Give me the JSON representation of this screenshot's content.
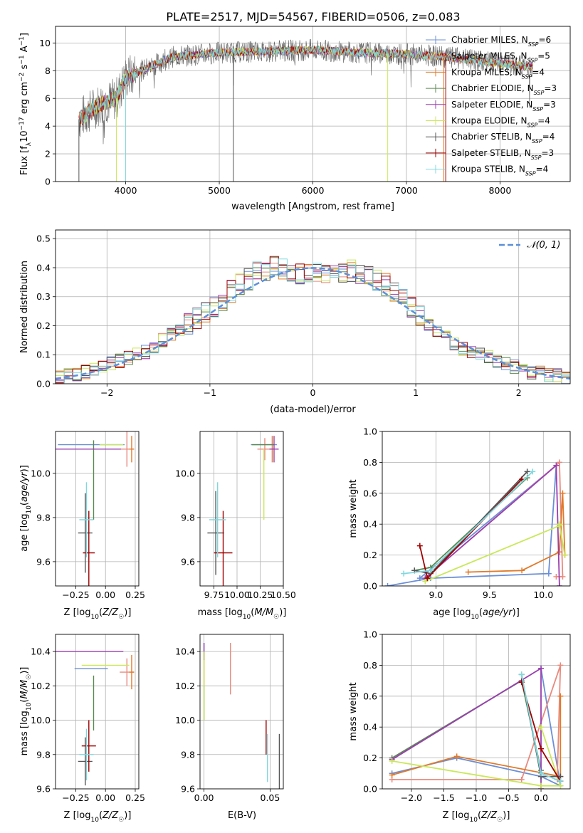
{
  "figure_title": "PLATE=2517, MJD=54567, FIBERID=0506, z=0.083",
  "models": [
    {
      "name": "Chabrier MILES",
      "nssp": "6",
      "color": "#6b8fd6"
    },
    {
      "name": "Salpeter MILES",
      "nssp": "5",
      "color": "#e88a7e"
    },
    {
      "name": "Kroupa MILES",
      "nssp": "4",
      "color": "#e07a2a"
    },
    {
      "name": "Chabrier ELODIE",
      "nssp": "3",
      "color": "#5a8a50"
    },
    {
      "name": "Salpeter ELODIE",
      "nssp": "3",
      "color": "#9a3fb0"
    },
    {
      "name": "Kroupa ELODIE",
      "nssp": "4",
      "color": "#c9e85a"
    },
    {
      "name": "Chabrier STELIB",
      "nssp": "4",
      "color": "#555555"
    },
    {
      "name": "Salpeter STELIB",
      "nssp": "3",
      "color": "#a00000"
    },
    {
      "name": "Kroupa STELIB",
      "nssp": "4",
      "color": "#7fd8e0"
    }
  ],
  "chart_data": [
    {
      "type": "line",
      "xlabel": "wavelength [Angstrom, rest frame]",
      "ylabel": "Flux [f_λ10^-17 erg cm^-2 s^-1 A^-1]",
      "xlim": [
        3250,
        8750
      ],
      "ylim": [
        0,
        11.2
      ],
      "xticks": [
        "4000",
        "5000",
        "6000",
        "7000",
        "8000"
      ],
      "yticks": [
        "0",
        "2",
        "4",
        "6",
        "8",
        "10"
      ],
      "observed_envelope": {
        "x": [
          3500,
          3700,
          3900,
          4000,
          4500,
          5000,
          5500,
          6000,
          6500,
          7000,
          7400,
          8300
        ],
        "y": [
          4.5,
          5.5,
          6.0,
          7.5,
          9.0,
          9.3,
          9.4,
          9.5,
          9.3,
          9.2,
          9.0,
          8.3
        ]
      },
      "legend_position": "right"
    },
    {
      "type": "line",
      "xlabel": "(data-model)/error",
      "ylabel": "Normed distribution",
      "xlim": [
        -2.5,
        2.5
      ],
      "ylim": [
        0,
        0.53
      ],
      "xticks": [
        "−2",
        "−1",
        "0",
        "1",
        "2"
      ],
      "yticks": [
        "0.0",
        "0.1",
        "0.2",
        "0.3",
        "0.4",
        "0.5"
      ],
      "reference_label": "𝒩(0, 1)",
      "histogram_mean": [
        0.02,
        0.03,
        0.03,
        0.04,
        0.05,
        0.06,
        0.07,
        0.08,
        0.09,
        0.1,
        0.11,
        0.13,
        0.15,
        0.17,
        0.19,
        0.21,
        0.23,
        0.25,
        0.27,
        0.29,
        0.32,
        0.34,
        0.36,
        0.38,
        0.39,
        0.4,
        0.4,
        0.39,
        0.38,
        0.38,
        0.38,
        0.38,
        0.39,
        0.39,
        0.39,
        0.38,
        0.37,
        0.36,
        0.34,
        0.32,
        0.29,
        0.26,
        0.23,
        0.2,
        0.18,
        0.16,
        0.14,
        0.12,
        0.11,
        0.1,
        0.09,
        0.08,
        0.07,
        0.06,
        0.05,
        0.04,
        0.04,
        0.03,
        0.03,
        0.02
      ],
      "legend_position": "top-right"
    },
    {
      "type": "scatter",
      "xlabel": "Z [log10(Z/Z☉)]",
      "ylabel": "age  [log10(age/yr)]",
      "xlim": [
        -0.42,
        0.28
      ],
      "ylim": [
        9.49,
        10.19
      ],
      "xticks": [
        "−0.25",
        "0.00",
        "0.25"
      ],
      "yticks": [
        "9.6",
        "9.8",
        "10.0"
      ],
      "points": [
        {
          "x": -0.12,
          "y": 10.13,
          "dx": 0.28,
          "dy": 0.0
        },
        {
          "x": 0.18,
          "y": 10.11,
          "dx": 0.06,
          "dy": 0.08
        },
        {
          "x": 0.22,
          "y": 10.11,
          "dx": 0.02,
          "dy": 0.06
        },
        {
          "x": -0.1,
          "y": 9.97,
          "dx": 0.0,
          "dy": 0.18
        },
        {
          "x": -0.15,
          "y": 10.11,
          "dx": 0.28,
          "dy": 0.0
        },
        {
          "x": 0.05,
          "y": 10.13,
          "dx": 0.1,
          "dy": 0.0
        },
        {
          "x": -0.17,
          "y": 9.73,
          "dx": 0.06,
          "dy": 0.18
        },
        {
          "x": -0.14,
          "y": 9.64,
          "dx": 0.05,
          "dy": 0.19
        },
        {
          "x": -0.16,
          "y": 9.79,
          "dx": 0.06,
          "dy": 0.17
        }
      ]
    },
    {
      "type": "scatter",
      "xlabel": "mass [log10(M/M☉)]",
      "ylabel": "",
      "xlim": [
        9.6,
        10.5
      ],
      "ylim": [
        9.49,
        10.19
      ],
      "xticks": [
        "9.75",
        "10.00",
        "10.25",
        "10.50"
      ],
      "yticks": [
        "9.6",
        "9.8",
        "10.0"
      ],
      "points": [
        {
          "x": 10.29,
          "y": 10.13,
          "dx": 0.14,
          "dy": 0.0
        },
        {
          "x": 10.3,
          "y": 10.11,
          "dx": 0.08,
          "dy": 0.05
        },
        {
          "x": 10.38,
          "y": 10.11,
          "dx": 0.02,
          "dy": 0.06
        },
        {
          "x": 10.28,
          "y": 10.13,
          "dx": 0.12,
          "dy": 0.0
        },
        {
          "x": 10.4,
          "y": 10.11,
          "dx": 0.05,
          "dy": 0.06
        },
        {
          "x": 10.29,
          "y": 9.95,
          "dx": 0.0,
          "dy": 0.16
        },
        {
          "x": 9.77,
          "y": 9.73,
          "dx": 0.09,
          "dy": 0.19
        },
        {
          "x": 9.85,
          "y": 9.64,
          "dx": 0.1,
          "dy": 0.19
        },
        {
          "x": 9.79,
          "y": 9.79,
          "dx": 0.09,
          "dy": 0.17
        }
      ]
    },
    {
      "type": "line",
      "xlabel": "age  [log10(age/yr)]",
      "ylabel": "mass weight",
      "xlim": [
        8.5,
        10.25
      ],
      "ylim": [
        0,
        1
      ],
      "xticks": [
        "9.0",
        "9.5",
        "10.0"
      ],
      "yticks": [
        "0.0",
        "0.2",
        "0.4",
        "0.6",
        "0.8",
        "1.0"
      ],
      "series": [
        {
          "x": [
            8.55,
            8.95,
            10.05,
            10.12,
            8.85
          ],
          "y": [
            0.0,
            0.05,
            0.08,
            0.78,
            0.05
          ]
        },
        {
          "x": [
            8.9,
            10.15,
            10.18,
            10.12
          ],
          "y": [
            0.05,
            0.8,
            0.06,
            0.06
          ]
        },
        {
          "x": [
            9.3,
            9.8,
            10.15,
            10.18,
            10.2
          ],
          "y": [
            0.09,
            0.1,
            0.22,
            0.6,
            0.2
          ]
        },
        {
          "x": [
            8.8,
            8.95,
            9.85
          ],
          "y": [
            0.1,
            0.12,
            0.7
          ]
        },
        {
          "x": [
            8.9,
            10.12,
            10.15
          ],
          "y": [
            0.05,
            0.78,
            0.0
          ]
        },
        {
          "x": [
            8.9,
            10.15,
            10.2,
            10.15
          ],
          "y": [
            0.03,
            0.39,
            0.2,
            0.4
          ]
        },
        {
          "x": [
            8.8,
            8.95,
            9.85
          ],
          "y": [
            0.1,
            0.08,
            0.74
          ]
        },
        {
          "x": [
            8.85,
            8.92,
            9.8
          ],
          "y": [
            0.26,
            0.05,
            0.69
          ]
        },
        {
          "x": [
            8.7,
            8.95,
            9.9
          ],
          "y": [
            0.08,
            0.1,
            0.74
          ]
        }
      ]
    },
    {
      "type": "scatter",
      "xlabel": "Z [log10(Z/Z☉)]",
      "ylabel": "mass [log10(M/M☉)]",
      "xlim": [
        -0.42,
        0.28
      ],
      "ylim": [
        9.6,
        10.5
      ],
      "xticks": [
        "−0.25",
        "0.00",
        "0.25"
      ],
      "yticks": [
        "9.6",
        "9.8",
        "10.0",
        "10.2",
        "10.4"
      ],
      "points": [
        {
          "x": -0.12,
          "y": 10.3,
          "dx": 0.14,
          "dy": 0.0
        },
        {
          "x": 0.18,
          "y": 10.28,
          "dx": 0.06,
          "dy": 0.08
        },
        {
          "x": 0.22,
          "y": 10.28,
          "dx": 0.02,
          "dy": 0.1
        },
        {
          "x": -0.1,
          "y": 10.1,
          "dx": 0.0,
          "dy": 0.16
        },
        {
          "x": -0.15,
          "y": 10.4,
          "dx": 0.3,
          "dy": 0.0
        },
        {
          "x": 0.0,
          "y": 10.32,
          "dx": 0.2,
          "dy": 0.0
        },
        {
          "x": -0.17,
          "y": 9.76,
          "dx": 0.06,
          "dy": 0.14
        },
        {
          "x": -0.14,
          "y": 9.85,
          "dx": 0.06,
          "dy": 0.15
        },
        {
          "x": -0.16,
          "y": 9.8,
          "dx": 0.06,
          "dy": 0.15
        }
      ]
    },
    {
      "type": "scatter",
      "xlabel": "E(B-V)",
      "ylabel": "",
      "xlim": [
        -0.003,
        0.06
      ],
      "ylim": [
        9.6,
        10.5
      ],
      "xticks": [
        "0.00",
        "0.05"
      ],
      "yticks": [
        "9.6",
        "9.8",
        "10.0",
        "10.2",
        "10.4"
      ],
      "points": [
        {
          "x": 0.0,
          "y": 10.4,
          "dx": 0.0,
          "dy": 0.05
        },
        {
          "x": 0.02,
          "y": 10.3,
          "dx": 0.0,
          "dy": 0.15
        },
        {
          "x": 0.0,
          "y": 10.3,
          "dx": 0.0,
          "dy": 0.1
        },
        {
          "x": 0.0,
          "y": 10.1,
          "dx": 0.0,
          "dy": 0.1
        },
        {
          "x": 0.0,
          "y": 10.4,
          "dx": 0.0,
          "dy": 0.05
        },
        {
          "x": 0.0,
          "y": 10.2,
          "dx": 0.0,
          "dy": 0.2
        },
        {
          "x": 0.057,
          "y": 9.76,
          "dx": 0.0,
          "dy": 0.16
        },
        {
          "x": 0.047,
          "y": 9.9,
          "dx": 0.0,
          "dy": 0.1
        },
        {
          "x": 0.048,
          "y": 9.78,
          "dx": 0.0,
          "dy": 0.14
        }
      ]
    },
    {
      "type": "line",
      "xlabel": "Z [log10(Z/Z☉)]",
      "ylabel": "mass weight",
      "xlim": [
        -2.45,
        0.45
      ],
      "ylim": [
        0,
        1
      ],
      "xticks": [
        "−2.0",
        "−1.5",
        "−1.0",
        "−0.5",
        "0.0"
      ],
      "yticks": [
        "0.0",
        "0.2",
        "0.4",
        "0.6",
        "0.8",
        "1.0"
      ],
      "series": [
        {
          "x": [
            -2.3,
            -1.3,
            0.0,
            0.3,
            0.0
          ],
          "y": [
            0.1,
            0.2,
            0.08,
            0.02,
            0.78
          ]
        },
        {
          "x": [
            -2.3,
            -0.3,
            0.3,
            0.25
          ],
          "y": [
            0.06,
            0.06,
            0.8,
            0.06
          ]
        },
        {
          "x": [
            -2.3,
            -1.3,
            0.3,
            0.3
          ],
          "y": [
            0.09,
            0.21,
            0.08,
            0.6
          ]
        },
        {
          "x": [
            -2.3,
            -0.3,
            0.0
          ],
          "y": [
            0.2,
            0.7,
            0.12
          ]
        },
        {
          "x": [
            -2.3,
            0.0,
            0.0
          ],
          "y": [
            0.19,
            0.78,
            0.0
          ]
        },
        {
          "x": [
            -2.3,
            0.0,
            0.3,
            0.0
          ],
          "y": [
            0.18,
            0.02,
            0.02,
            0.4
          ]
        },
        {
          "x": [
            -0.3,
            0.0,
            0.3
          ],
          "y": [
            0.74,
            0.08,
            0.08
          ]
        },
        {
          "x": [
            -0.3,
            0.0,
            0.3
          ],
          "y": [
            0.69,
            0.26,
            0.05
          ]
        },
        {
          "x": [
            -0.3,
            0.0,
            0.3
          ],
          "y": [
            0.74,
            0.1,
            0.05
          ]
        }
      ]
    }
  ]
}
